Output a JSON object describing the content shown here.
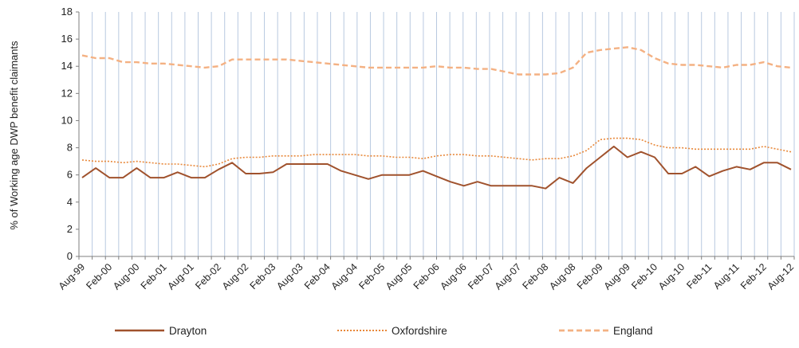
{
  "chart_data": {
    "type": "line",
    "title": "",
    "xlabel": "",
    "ylabel": "% of Working age DWP benefit claimants",
    "ylim": [
      0,
      18
    ],
    "yticks": [
      0,
      2,
      4,
      6,
      8,
      10,
      12,
      14,
      16,
      18
    ],
    "grid": "vertical",
    "legend": "bottom",
    "x_tick_labels": [
      "Aug-99",
      "Feb-00",
      "Aug-00",
      "Feb-01",
      "Aug-01",
      "Feb-02",
      "Aug-02",
      "Feb-03",
      "Aug-03",
      "Feb-04",
      "Aug-04",
      "Feb-05",
      "Aug-05",
      "Feb-06",
      "Aug-06",
      "Feb-07",
      "Aug-07",
      "Feb-08",
      "Aug-08",
      "Feb-09",
      "Aug-09",
      "Feb-10",
      "Aug-10",
      "Feb-11",
      "Aug-11",
      "Feb-12",
      "Aug-12"
    ],
    "series": [
      {
        "name": "Drayton",
        "color": "#a0522d",
        "style": "solid",
        "values": [
          5.8,
          6.5,
          5.8,
          5.8,
          6.5,
          5.8,
          5.8,
          6.2,
          5.8,
          5.8,
          6.4,
          6.9,
          6.1,
          6.1,
          6.2,
          6.8,
          6.8,
          6.8,
          6.8,
          6.3,
          6.0,
          5.7,
          6.0,
          6.0,
          6.0,
          6.3,
          5.9,
          5.5,
          5.2,
          5.5,
          5.2,
          5.2,
          5.2,
          5.2,
          5.0,
          5.8,
          5.4,
          6.5,
          7.3,
          8.1,
          7.3,
          7.7,
          7.3,
          6.1,
          6.1,
          6.6,
          5.9,
          6.3,
          6.6,
          6.4,
          6.9,
          6.9,
          6.4
        ]
      },
      {
        "name": "Oxfordshire",
        "color": "#e8883a",
        "style": "dotted",
        "values": [
          7.1,
          7.0,
          7.0,
          6.9,
          7.0,
          6.9,
          6.8,
          6.8,
          6.7,
          6.6,
          6.8,
          7.2,
          7.3,
          7.3,
          7.4,
          7.4,
          7.4,
          7.5,
          7.5,
          7.5,
          7.5,
          7.4,
          7.4,
          7.3,
          7.3,
          7.2,
          7.4,
          7.5,
          7.5,
          7.4,
          7.4,
          7.3,
          7.2,
          7.1,
          7.2,
          7.2,
          7.4,
          7.8,
          8.6,
          8.7,
          8.7,
          8.6,
          8.2,
          8.0,
          8.0,
          7.9,
          7.9,
          7.9,
          7.9,
          7.9,
          8.1,
          7.9,
          7.7
        ]
      },
      {
        "name": "England",
        "color": "#f4b183",
        "style": "dashed",
        "values": [
          14.8,
          14.6,
          14.6,
          14.3,
          14.3,
          14.2,
          14.2,
          14.1,
          14.0,
          13.9,
          14.0,
          14.5,
          14.5,
          14.5,
          14.5,
          14.5,
          14.4,
          14.3,
          14.2,
          14.1,
          14.0,
          13.9,
          13.9,
          13.9,
          13.9,
          13.9,
          14.0,
          13.9,
          13.9,
          13.8,
          13.8,
          13.6,
          13.4,
          13.4,
          13.4,
          13.5,
          13.9,
          15.0,
          15.2,
          15.3,
          15.4,
          15.2,
          14.6,
          14.2,
          14.1,
          14.1,
          14.0,
          13.9,
          14.1,
          14.1,
          14.3,
          14.0,
          13.9
        ]
      }
    ]
  }
}
